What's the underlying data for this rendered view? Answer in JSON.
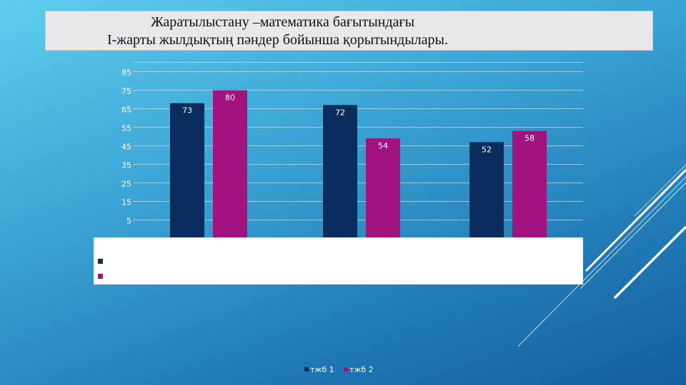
{
  "title": {
    "line1": "Жаратылыстану –математика бағытындағы",
    "line2": "I-жарты жылдықтың пәндер бойынша қорытындылары."
  },
  "colors": {
    "series1": "#0b2d5e",
    "series2": "#a3137f",
    "grid": "#b9dcef",
    "tick": "#ffffff"
  },
  "chart_data": {
    "type": "bar",
    "title": "Жаратылыстану –математика бағытындағы I-жарты жылдықтың пәндер бойынша қорытындылары.",
    "categories": [
      "",
      "",
      ""
    ],
    "series": [
      {
        "name": "тжб 1",
        "values": [
          73,
          72,
          52
        ]
      },
      {
        "name": "тжб 2",
        "values": [
          80,
          54,
          58
        ]
      }
    ],
    "yticks": [
      5,
      15,
      25,
      35,
      45,
      55,
      65,
      75,
      85
    ],
    "ylim": [
      0,
      90
    ],
    "xlabel": "",
    "ylabel": "",
    "grid": true,
    "data_labels": true,
    "legend_position": "bottom"
  }
}
